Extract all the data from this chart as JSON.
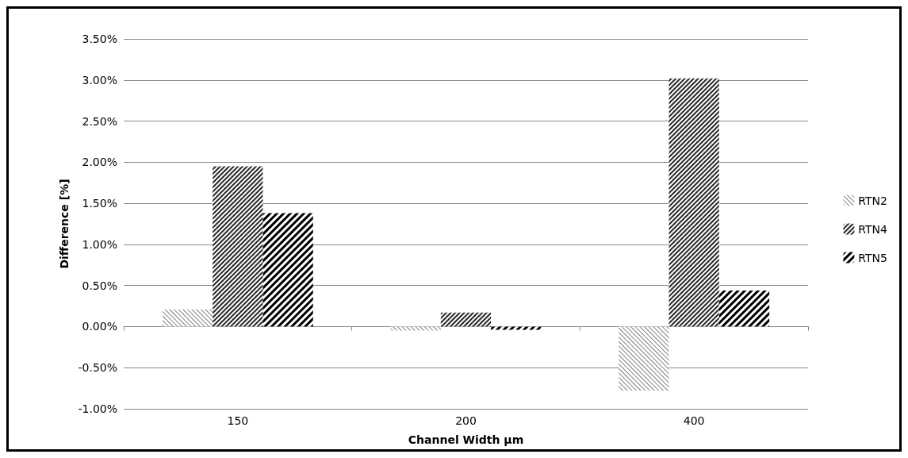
{
  "chart_data": {
    "type": "bar",
    "xlabel": "Channel Width µm",
    "ylabel": "Difference [%]",
    "categories": [
      "150",
      "200",
      "400"
    ],
    "series": [
      {
        "name": "RTN2",
        "color": "#808080",
        "values": [
          0.21,
          -0.05,
          -0.78
        ]
      },
      {
        "name": "RTN4",
        "color": "#262626",
        "values": [
          1.95,
          0.17,
          3.02
        ]
      },
      {
        "name": "RTN5",
        "color": "#000000",
        "values": [
          1.38,
          -0.04,
          0.44
        ]
      }
    ],
    "ylim": [
      -1,
      3.5
    ],
    "yticks": [
      {
        "value": -1,
        "label": "-1.00%"
      },
      {
        "value": -0.5,
        "label": "-0.50%"
      },
      {
        "value": 0,
        "label": "0.00%"
      },
      {
        "value": 0.5,
        "label": "0.50%"
      },
      {
        "value": 1,
        "label": "1.00%"
      },
      {
        "value": 1.5,
        "label": "1.50%"
      },
      {
        "value": 2,
        "label": "2.00%"
      },
      {
        "value": 2.5,
        "label": "2.50%"
      },
      {
        "value": 3,
        "label": "3.00%"
      },
      {
        "value": 3.5,
        "label": "3.50%"
      }
    ],
    "grid": "y",
    "legend": "right"
  }
}
